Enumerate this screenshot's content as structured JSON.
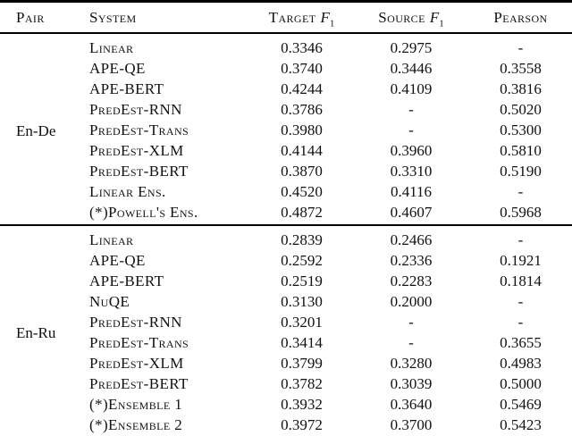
{
  "table": {
    "headers": {
      "pair": "Pair",
      "system": "System",
      "target": "Target",
      "source": "Source",
      "pearson": "Pearson",
      "f1_letter": "F",
      "f1_subscript": "1"
    },
    "groups": [
      {
        "pair": "En-De",
        "rows": [
          {
            "system": "Linear",
            "target_f1": "0.3346",
            "source_f1": "0.2975",
            "pearson": "-"
          },
          {
            "system": "APE-QE",
            "target_f1": "0.3740",
            "source_f1": "0.3446",
            "pearson": "0.3558"
          },
          {
            "system": "APE-BERT",
            "target_f1": "0.4244",
            "source_f1": "0.4109",
            "pearson": "0.3816"
          },
          {
            "system": "PredEst-RNN",
            "target_f1": "0.3786",
            "source_f1": "-",
            "pearson": "0.5020"
          },
          {
            "system": "PredEst-Trans",
            "target_f1": "0.3980",
            "source_f1": "-",
            "pearson": "0.5300"
          },
          {
            "system": "PredEst-XLM",
            "target_f1": "0.4144",
            "source_f1": "0.3960",
            "pearson": "0.5810"
          },
          {
            "system": "PredEst-BERT",
            "target_f1": "0.3870",
            "source_f1": "0.3310",
            "pearson": "0.5190"
          },
          {
            "system": "Linear Ens.",
            "target_f1": "0.4520",
            "source_f1": "0.4116",
            "pearson": "-"
          },
          {
            "system": "(*)Powell's Ens.",
            "target_f1": "0.4872",
            "source_f1": "0.4607",
            "pearson": "0.5968"
          }
        ]
      },
      {
        "pair": "En-Ru",
        "rows": [
          {
            "system": "Linear",
            "target_f1": "0.2839",
            "source_f1": "0.2466",
            "pearson": "-"
          },
          {
            "system": "APE-QE",
            "target_f1": "0.2592",
            "source_f1": "0.2336",
            "pearson": "0.1921"
          },
          {
            "system": "APE-BERT",
            "target_f1": "0.2519",
            "source_f1": "0.2283",
            "pearson": "0.1814"
          },
          {
            "system": "NuQE",
            "target_f1": "0.3130",
            "source_f1": "0.2000",
            "pearson": "-"
          },
          {
            "system": "PredEst-RNN",
            "target_f1": "0.3201",
            "source_f1": "-",
            "pearson": "-"
          },
          {
            "system": "PredEst-Trans",
            "target_f1": "0.3414",
            "source_f1": "-",
            "pearson": "0.3655"
          },
          {
            "system": "PredEst-XLM",
            "target_f1": "0.3799",
            "source_f1": "0.3280",
            "pearson": "0.4983"
          },
          {
            "system": "PredEst-BERT",
            "target_f1": "0.3782",
            "source_f1": "0.3039",
            "pearson": "0.5000"
          },
          {
            "system": "(*)Ensemble 1",
            "target_f1": "0.3932",
            "source_f1": "0.3640",
            "pearson": "0.5469"
          },
          {
            "system": "(*)Ensemble 2",
            "target_f1": "0.3972",
            "source_f1": "0.3700",
            "pearson": "0.5423"
          }
        ]
      }
    ]
  }
}
